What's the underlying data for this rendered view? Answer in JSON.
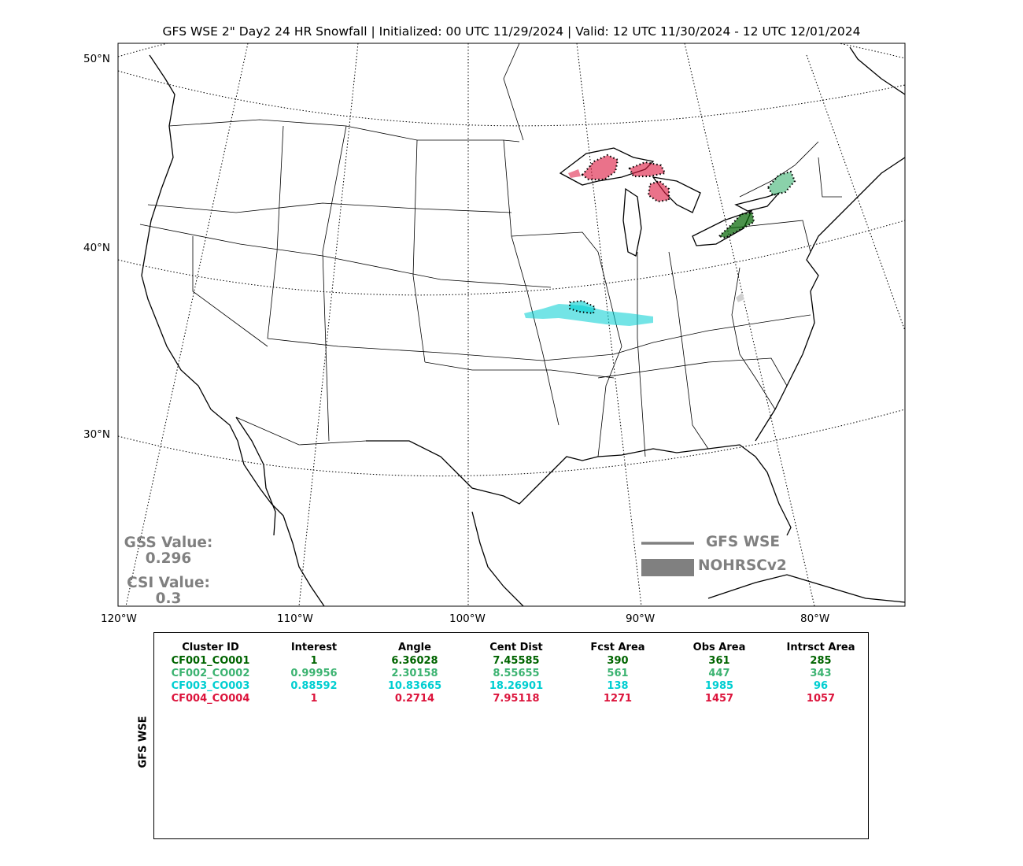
{
  "title": "GFS WSE 2\" Day2 24 HR Snowfall | Initialized: 00 UTC 11/29/2024 | Valid: 12 UTC 11/30/2024 - 12 UTC 12/01/2024",
  "lat_labels": [
    "50°N",
    "40°N",
    "30°N"
  ],
  "lon_labels": [
    "120°W",
    "110°W",
    "100°W",
    "90°W",
    "80°W"
  ],
  "scores": {
    "gss_label": "GSS Value:",
    "gss_value": "0.296",
    "csi_label": "CSI Value:",
    "csi_value": "0.3"
  },
  "legend": {
    "forecast_label": "GFS WSE",
    "observed_label": "NOHRSCv2",
    "color": "#808080"
  },
  "table": {
    "side_label": "GFS WSE",
    "headers": [
      "Cluster ID",
      "Interest",
      "Angle",
      "Cent Dist",
      "Fcst Area",
      "Obs Area",
      "Intrsct Area"
    ],
    "rows": [
      {
        "color": "#006400",
        "cells": [
          "CF001_CO001",
          "1",
          "6.36028",
          "7.45585",
          "390",
          "361",
          "285"
        ]
      },
      {
        "color": "#3cb371",
        "cells": [
          "CF002_CO002",
          "0.99956",
          "2.30158",
          "8.55655",
          "561",
          "447",
          "343"
        ]
      },
      {
        "color": "#00ced1",
        "cells": [
          "CF003_CO003",
          "0.88592",
          "10.83665",
          "18.26901",
          "138",
          "1985",
          "96"
        ]
      },
      {
        "color": "#dc143c",
        "cells": [
          "CF004_CO004",
          "1",
          "0.2714",
          "7.95118",
          "1271",
          "1457",
          "1057"
        ]
      }
    ]
  },
  "cluster_colors": {
    "c1": "#006400",
    "c2": "#3cb371",
    "c3": "#00ced1",
    "c4": "#dc143c"
  }
}
